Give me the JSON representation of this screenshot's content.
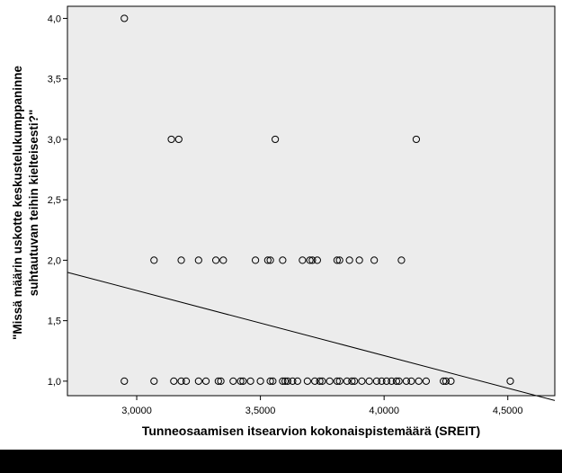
{
  "chart_data": {
    "type": "scatter",
    "title": "",
    "xlabel": "Tunneosaamisen itsearvion kokonaispistemäärä (SREIT)",
    "ylabel_lines": [
      "\"Missä määrin uskotte keskustelukumppaninne",
      "suhtautuvan teihin kielteisesti?\""
    ],
    "xlim": [
      2.72,
      4.69
    ],
    "ylim": [
      0.88,
      4.1
    ],
    "x_ticks": [
      {
        "value": 3.0,
        "label": "3,0000"
      },
      {
        "value": 3.5,
        "label": "3,5000"
      },
      {
        "value": 4.0,
        "label": "4,0000"
      },
      {
        "value": 4.5,
        "label": "4,5000"
      }
    ],
    "y_ticks": [
      {
        "value": 1.0,
        "label": "1,0"
      },
      {
        "value": 1.5,
        "label": "1,5"
      },
      {
        "value": 2.0,
        "label": "2,0"
      },
      {
        "value": 2.5,
        "label": "2,5"
      },
      {
        "value": 3.0,
        "label": "3,0"
      },
      {
        "value": 3.5,
        "label": "3,5"
      },
      {
        "value": 4.0,
        "label": "4,0"
      }
    ],
    "grid": false,
    "points": [
      {
        "x": 2.95,
        "y": 4.0
      },
      {
        "x": 3.14,
        "y": 3.0
      },
      {
        "x": 3.17,
        "y": 3.0
      },
      {
        "x": 3.56,
        "y": 3.0
      },
      {
        "x": 4.13,
        "y": 3.0
      },
      {
        "x": 3.07,
        "y": 2.0
      },
      {
        "x": 3.18,
        "y": 2.0
      },
      {
        "x": 3.25,
        "y": 2.0
      },
      {
        "x": 3.32,
        "y": 2.0
      },
      {
        "x": 3.35,
        "y": 2.0
      },
      {
        "x": 3.48,
        "y": 2.0
      },
      {
        "x": 3.53,
        "y": 2.0
      },
      {
        "x": 3.54,
        "y": 2.0
      },
      {
        "x": 3.59,
        "y": 2.0
      },
      {
        "x": 3.67,
        "y": 2.0
      },
      {
        "x": 3.7,
        "y": 2.0
      },
      {
        "x": 3.71,
        "y": 2.0
      },
      {
        "x": 3.73,
        "y": 2.0
      },
      {
        "x": 3.81,
        "y": 2.0
      },
      {
        "x": 3.82,
        "y": 2.0
      },
      {
        "x": 3.86,
        "y": 2.0
      },
      {
        "x": 3.9,
        "y": 2.0
      },
      {
        "x": 3.96,
        "y": 2.0
      },
      {
        "x": 4.07,
        "y": 2.0
      },
      {
        "x": 2.95,
        "y": 1.0
      },
      {
        "x": 3.07,
        "y": 1.0
      },
      {
        "x": 3.15,
        "y": 1.0
      },
      {
        "x": 3.18,
        "y": 1.0
      },
      {
        "x": 3.2,
        "y": 1.0
      },
      {
        "x": 3.25,
        "y": 1.0
      },
      {
        "x": 3.28,
        "y": 1.0
      },
      {
        "x": 3.33,
        "y": 1.0
      },
      {
        "x": 3.34,
        "y": 1.0
      },
      {
        "x": 3.39,
        "y": 1.0
      },
      {
        "x": 3.42,
        "y": 1.0
      },
      {
        "x": 3.43,
        "y": 1.0
      },
      {
        "x": 3.46,
        "y": 1.0
      },
      {
        "x": 3.5,
        "y": 1.0
      },
      {
        "x": 3.54,
        "y": 1.0
      },
      {
        "x": 3.55,
        "y": 1.0
      },
      {
        "x": 3.59,
        "y": 1.0
      },
      {
        "x": 3.6,
        "y": 1.0
      },
      {
        "x": 3.61,
        "y": 1.0
      },
      {
        "x": 3.63,
        "y": 1.0
      },
      {
        "x": 3.65,
        "y": 1.0
      },
      {
        "x": 3.69,
        "y": 1.0
      },
      {
        "x": 3.72,
        "y": 1.0
      },
      {
        "x": 3.74,
        "y": 1.0
      },
      {
        "x": 3.75,
        "y": 1.0
      },
      {
        "x": 3.78,
        "y": 1.0
      },
      {
        "x": 3.81,
        "y": 1.0
      },
      {
        "x": 3.82,
        "y": 1.0
      },
      {
        "x": 3.85,
        "y": 1.0
      },
      {
        "x": 3.87,
        "y": 1.0
      },
      {
        "x": 3.88,
        "y": 1.0
      },
      {
        "x": 3.91,
        "y": 1.0
      },
      {
        "x": 3.94,
        "y": 1.0
      },
      {
        "x": 3.97,
        "y": 1.0
      },
      {
        "x": 3.99,
        "y": 1.0
      },
      {
        "x": 4.01,
        "y": 1.0
      },
      {
        "x": 4.03,
        "y": 1.0
      },
      {
        "x": 4.05,
        "y": 1.0
      },
      {
        "x": 4.06,
        "y": 1.0
      },
      {
        "x": 4.09,
        "y": 1.0
      },
      {
        "x": 4.11,
        "y": 1.0
      },
      {
        "x": 4.14,
        "y": 1.0
      },
      {
        "x": 4.17,
        "y": 1.0
      },
      {
        "x": 4.24,
        "y": 1.0
      },
      {
        "x": 4.25,
        "y": 1.0
      },
      {
        "x": 4.27,
        "y": 1.0
      },
      {
        "x": 4.51,
        "y": 1.0
      }
    ],
    "fit_line": {
      "x": [
        2.72,
        4.69
      ],
      "y": [
        1.9,
        0.84
      ]
    },
    "colors": {
      "plot_background": "#ececec",
      "page_background": "#ffffff",
      "marker_stroke": "#000000",
      "marker_fill": "none",
      "fit_line": "#000000",
      "axis": "#000000",
      "bottom_band": "#000000"
    }
  }
}
